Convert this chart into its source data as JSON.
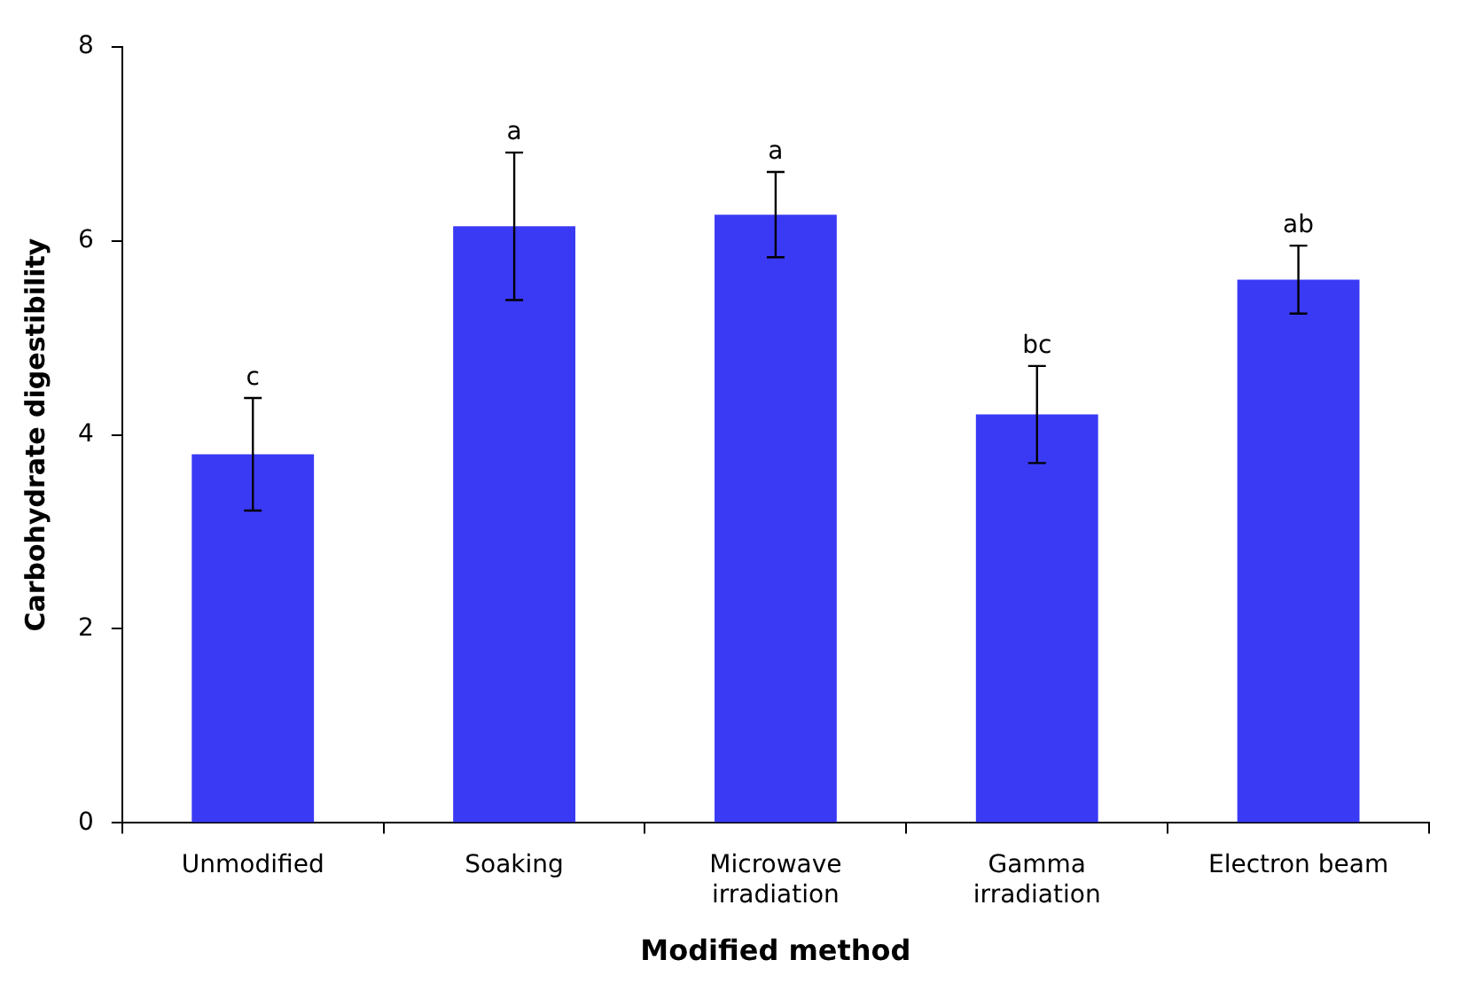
{
  "chart_data": {
    "type": "bar",
    "xlabel": "Modified method",
    "ylabel": "Carbohydrate digestibility",
    "categories": [
      "Unmodified",
      "Soaking",
      "Microwave irradiation",
      "Gamma irradiation",
      "Electron beam"
    ],
    "values": [
      3.8,
      6.15,
      6.27,
      4.21,
      5.6
    ],
    "errors": [
      0.58,
      0.76,
      0.44,
      0.5,
      0.35
    ],
    "color": "#3a3af5",
    "ylim": [
      0,
      8
    ],
    "yticks": [
      0,
      2,
      4,
      6,
      8
    ],
    "grid": false,
    "legend": false,
    "annotations": [
      {
        "text": "c",
        "x": "Unmodified",
        "y": 4.38
      },
      {
        "text": "a",
        "x": "Soaking",
        "y": 6.91
      },
      {
        "text": "a",
        "x": "Microwave irradiation",
        "y": 6.71
      },
      {
        "text": "bc",
        "x": "Gamma irradiation",
        "y": 4.71
      },
      {
        "text": "ab",
        "x": "Electron beam",
        "y": 5.95
      }
    ]
  }
}
